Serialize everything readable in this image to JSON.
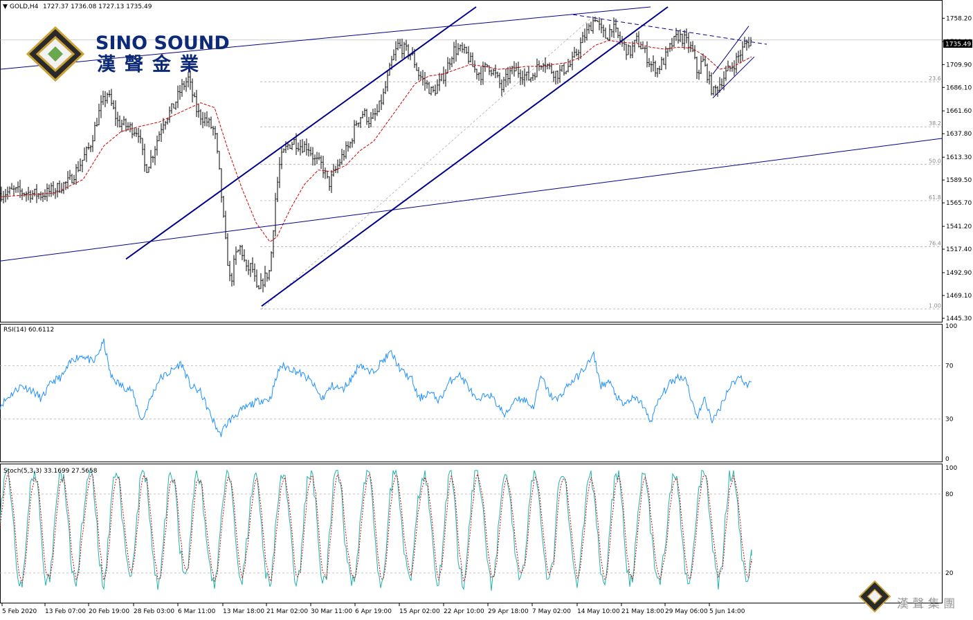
{
  "header": {
    "symbol": "GOLD,H4",
    "ohlc": "1727.37 1736.08 1727.13 1735.49"
  },
  "logo": {
    "name_en": "SINO SOUND",
    "name_cn": "漢聲金業"
  },
  "bottom_logo": {
    "name_cn": "漢 聲 集 團"
  },
  "colors": {
    "bull_bear_bars": "#000000",
    "moving_average": "#cc0000",
    "trend_lines": "#00008b",
    "rsi_line": "#1e90ff",
    "stoch_main": "#20b2aa",
    "stoch_signal": "#cc0000",
    "fib_levels": "#a0a0a0",
    "logo_gold": "#c9a23a"
  },
  "chart_data": [
    {
      "type": "candlestick",
      "name": "price",
      "title": "GOLD,H4",
      "ylim": [
        1445.3,
        1770.0
      ],
      "y_ticks": [
        "1758.20",
        "1733.90",
        "1709.90",
        "1686.10",
        "1661.60",
        "1637.80",
        "1613.30",
        "1589.50",
        "1565.70",
        "1541.20",
        "1517.40",
        "1492.90",
        "1469.10",
        "1445.30"
      ],
      "current_price": "1735.49",
      "fib_levels": [
        {
          "label": "23.6",
          "price": 1692
        },
        {
          "label": "38.2",
          "price": 1645
        },
        {
          "label": "50.0",
          "price": 1606
        },
        {
          "label": "61.8",
          "price": 1568
        },
        {
          "label": "76.4",
          "price": 1520
        },
        {
          "label": "1.00",
          "price": 1455
        }
      ],
      "x_labels": [
        "5 Feb 2020",
        "13 Feb 07:00",
        "20 Feb 19:00",
        "28 Feb 03:00",
        "6 Mar 11:00",
        "13 Mar 18:00",
        "21 Mar 02:00",
        "30 Mar 11:00",
        "6 Apr 19:00",
        "15 Apr 02:00",
        "22 Apr 10:00",
        "29 Apr 18:00",
        "7 May 02:00",
        "14 May 10:00",
        "21 May 18:00",
        "29 May 06:00",
        "5 Jun 14:00"
      ],
      "close_path": [
        [
          0,
          1575
        ],
        [
          20,
          1578
        ],
        [
          40,
          1576
        ],
        [
          60,
          1574
        ],
        [
          80,
          1580
        ],
        [
          100,
          1588
        ],
        [
          115,
          1605
        ],
        [
          130,
          1625
        ],
        [
          145,
          1665
        ],
        [
          155,
          1680
        ],
        [
          170,
          1650
        ],
        [
          185,
          1645
        ],
        [
          200,
          1640
        ],
        [
          210,
          1600
        ],
        [
          220,
          1615
        ],
        [
          235,
          1650
        ],
        [
          250,
          1665
        ],
        [
          262,
          1685
        ],
        [
          272,
          1695
        ],
        [
          285,
          1660
        ],
        [
          300,
          1650
        ],
        [
          310,
          1640
        ],
        [
          318,
          1590
        ],
        [
          325,
          1530
        ],
        [
          333,
          1480
        ],
        [
          340,
          1510
        ],
        [
          348,
          1520
        ],
        [
          356,
          1495
        ],
        [
          364,
          1500
        ],
        [
          372,
          1470
        ],
        [
          380,
          1485
        ],
        [
          390,
          1495
        ],
        [
          398,
          1570
        ],
        [
          405,
          1610
        ],
        [
          415,
          1625
        ],
        [
          425,
          1630
        ],
        [
          435,
          1625
        ],
        [
          445,
          1625
        ],
        [
          455,
          1610
        ],
        [
          465,
          1605
        ],
        [
          475,
          1585
        ],
        [
          485,
          1600
        ],
        [
          495,
          1615
        ],
        [
          505,
          1625
        ],
        [
          515,
          1650
        ],
        [
          525,
          1660
        ],
        [
          535,
          1650
        ],
        [
          545,
          1660
        ],
        [
          555,
          1680
        ],
        [
          565,
          1710
        ],
        [
          575,
          1730
        ],
        [
          585,
          1725
        ],
        [
          595,
          1720
        ],
        [
          605,
          1700
        ],
        [
          615,
          1690
        ],
        [
          625,
          1680
        ],
        [
          635,
          1690
        ],
        [
          645,
          1705
        ],
        [
          655,
          1725
        ],
        [
          665,
          1725
        ],
        [
          675,
          1720
        ],
        [
          685,
          1705
        ],
        [
          695,
          1700
        ],
        [
          705,
          1710
        ],
        [
          715,
          1700
        ],
        [
          725,
          1685
        ],
        [
          735,
          1700
        ],
        [
          745,
          1705
        ],
        [
          755,
          1700
        ],
        [
          765,
          1695
        ],
        [
          775,
          1705
        ],
        [
          785,
          1715
        ],
        [
          795,
          1705
        ],
        [
          805,
          1700
        ],
        [
          815,
          1705
        ],
        [
          825,
          1710
        ],
        [
          835,
          1725
        ],
        [
          845,
          1740
        ],
        [
          852,
          1748
        ],
        [
          860,
          1760
        ],
        [
          868,
          1745
        ],
        [
          876,
          1738
        ],
        [
          884,
          1750
        ],
        [
          892,
          1740
        ],
        [
          900,
          1730
        ],
        [
          910,
          1722
        ],
        [
          920,
          1735
        ],
        [
          930,
          1725
        ],
        [
          940,
          1710
        ],
        [
          950,
          1705
        ],
        [
          960,
          1715
        ],
        [
          970,
          1730
        ],
        [
          980,
          1740
        ],
        [
          990,
          1735
        ],
        [
          1000,
          1725
        ],
        [
          1008,
          1700
        ],
        [
          1015,
          1715
        ],
        [
          1022,
          1700
        ],
        [
          1030,
          1680
        ],
        [
          1040,
          1690
        ],
        [
          1050,
          1702
        ],
        [
          1060,
          1710
        ],
        [
          1070,
          1722
        ],
        [
          1078,
          1732
        ],
        [
          1086,
          1735
        ]
      ],
      "ma_path": [
        [
          0,
          1572
        ],
        [
          40,
          1574
        ],
        [
          80,
          1576
        ],
        [
          120,
          1590
        ],
        [
          150,
          1625
        ],
        [
          175,
          1640
        ],
        [
          200,
          1645
        ],
        [
          230,
          1650
        ],
        [
          260,
          1660
        ],
        [
          290,
          1670
        ],
        [
          310,
          1665
        ],
        [
          330,
          1620
        ],
        [
          350,
          1580
        ],
        [
          370,
          1545
        ],
        [
          390,
          1525
        ],
        [
          400,
          1530
        ],
        [
          420,
          1560
        ],
        [
          440,
          1585
        ],
        [
          460,
          1600
        ],
        [
          480,
          1598
        ],
        [
          500,
          1605
        ],
        [
          520,
          1620
        ],
        [
          540,
          1630
        ],
        [
          560,
          1650
        ],
        [
          580,
          1670
        ],
        [
          600,
          1690
        ],
        [
          620,
          1698
        ],
        [
          640,
          1700
        ],
        [
          660,
          1705
        ],
        [
          680,
          1710
        ],
        [
          700,
          1708
        ],
        [
          720,
          1705
        ],
        [
          740,
          1706
        ],
        [
          760,
          1708
        ],
        [
          780,
          1708
        ],
        [
          800,
          1710
        ],
        [
          820,
          1712
        ],
        [
          840,
          1718
        ],
        [
          860,
          1730
        ],
        [
          880,
          1735
        ],
        [
          900,
          1733
        ],
        [
          920,
          1732
        ],
        [
          940,
          1728
        ],
        [
          960,
          1726
        ],
        [
          980,
          1728
        ],
        [
          1000,
          1727
        ],
        [
          1020,
          1718
        ],
        [
          1040,
          1705
        ],
        [
          1060,
          1708
        ],
        [
          1086,
          1718
        ]
      ],
      "trend_lines": [
        {
          "name": "long-upper",
          "from": [
            0,
            1705
          ],
          "to": [
            940,
            1770
          ]
        },
        {
          "name": "long-lower",
          "from": [
            0,
            1505
          ],
          "to": [
            1362,
            1633
          ]
        },
        {
          "name": "channel-upper",
          "from": [
            182,
            1507
          ],
          "to": [
            688,
            1770
          ]
        },
        {
          "name": "channel-lower",
          "from": [
            378,
            1458
          ],
          "to": [
            965,
            1770
          ]
        },
        {
          "name": "resistance-dashed",
          "from": [
            828,
            1762
          ],
          "to": [
            1108,
            1731
          ]
        },
        {
          "name": "wedge-upper",
          "from": [
            1030,
            1700
          ],
          "to": [
            1082,
            1750
          ]
        },
        {
          "name": "wedge-lower",
          "from": [
            1030,
            1675
          ],
          "to": [
            1090,
            1718
          ]
        }
      ]
    },
    {
      "type": "line",
      "name": "RSI",
      "title": "RSI(14) 60.6112",
      "ylim": [
        0,
        100
      ],
      "y_ticks": [
        "100",
        "70",
        "30",
        "0"
      ],
      "levels": [
        70,
        30
      ],
      "points": [
        [
          0,
          40
        ],
        [
          15,
          48
        ],
        [
          30,
          55
        ],
        [
          45,
          52
        ],
        [
          60,
          45
        ],
        [
          75,
          58
        ],
        [
          90,
          62
        ],
        [
          105,
          75
        ],
        [
          120,
          78
        ],
        [
          135,
          72
        ],
        [
          150,
          88
        ],
        [
          160,
          62
        ],
        [
          175,
          55
        ],
        [
          190,
          52
        ],
        [
          205,
          28
        ],
        [
          215,
          42
        ],
        [
          230,
          60
        ],
        [
          245,
          65
        ],
        [
          262,
          72
        ],
        [
          275,
          55
        ],
        [
          290,
          50
        ],
        [
          305,
          32
        ],
        [
          318,
          18
        ],
        [
          330,
          28
        ],
        [
          345,
          35
        ],
        [
          360,
          40
        ],
        [
          375,
          44
        ],
        [
          390,
          45
        ],
        [
          405,
          70
        ],
        [
          420,
          68
        ],
        [
          435,
          64
        ],
        [
          450,
          58
        ],
        [
          465,
          45
        ],
        [
          480,
          55
        ],
        [
          495,
          52
        ],
        [
          510,
          62
        ],
        [
          520,
          72
        ],
        [
          535,
          64
        ],
        [
          550,
          72
        ],
        [
          565,
          80
        ],
        [
          580,
          66
        ],
        [
          595,
          60
        ],
        [
          605,
          45
        ],
        [
          620,
          50
        ],
        [
          635,
          44
        ],
        [
          650,
          58
        ],
        [
          662,
          64
        ],
        [
          675,
          56
        ],
        [
          690,
          42
        ],
        [
          705,
          50
        ],
        [
          720,
          40
        ],
        [
          730,
          32
        ],
        [
          745,
          46
        ],
        [
          760,
          44
        ],
        [
          770,
          38
        ],
        [
          782,
          62
        ],
        [
          795,
          48
        ],
        [
          805,
          44
        ],
        [
          820,
          55
        ],
        [
          835,
          62
        ],
        [
          850,
          72
        ],
        [
          858,
          78
        ],
        [
          868,
          55
        ],
        [
          880,
          58
        ],
        [
          890,
          48
        ],
        [
          900,
          40
        ],
        [
          912,
          45
        ],
        [
          925,
          44
        ],
        [
          940,
          28
        ],
        [
          952,
          44
        ],
        [
          965,
          55
        ],
        [
          980,
          62
        ],
        [
          992,
          60
        ],
        [
          1000,
          42
        ],
        [
          1008,
          32
        ],
        [
          1018,
          45
        ],
        [
          1030,
          28
        ],
        [
          1040,
          38
        ],
        [
          1050,
          50
        ],
        [
          1060,
          58
        ],
        [
          1070,
          62
        ],
        [
          1080,
          55
        ],
        [
          1086,
          60
        ]
      ]
    },
    {
      "type": "line",
      "name": "Stochastic",
      "title": "Stoch(5,3,3) 33.1699 27.5658",
      "ylim": [
        0,
        100
      ],
      "y_ticks": [
        "100",
        "80",
        "20"
      ],
      "levels": [
        80,
        20
      ],
      "series": [
        {
          "name": "",
          "values": [
            33.17
          ]
        },
        {
          "name": "",
          "values": [
            27.57
          ]
        }
      ]
    }
  ]
}
